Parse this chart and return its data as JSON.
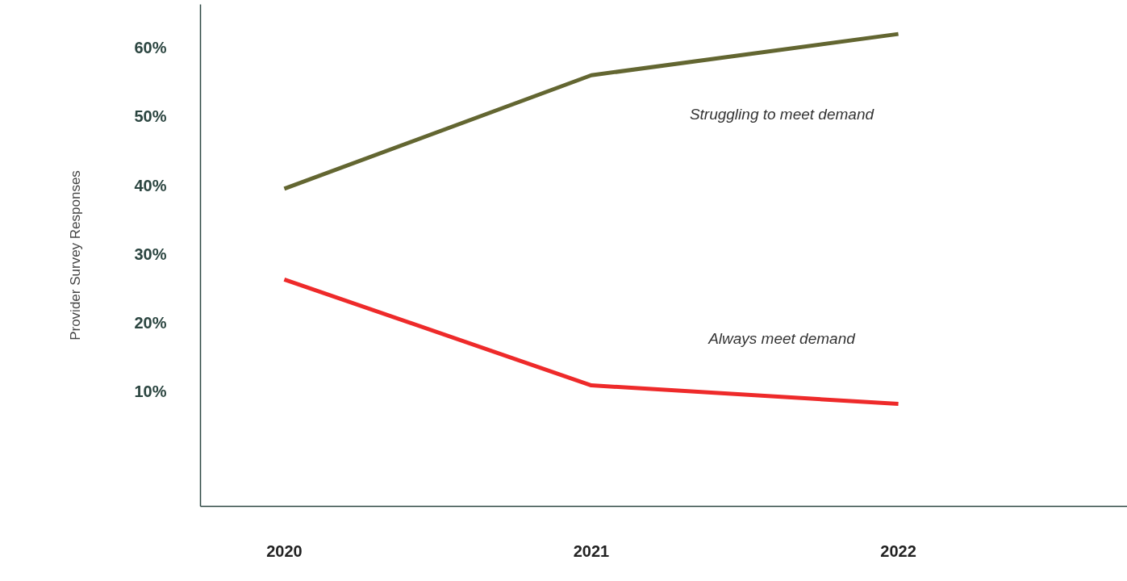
{
  "chart_data": {
    "type": "line",
    "ylabel": "Provider Survey Responses",
    "categories": [
      "2020",
      "2021",
      "2022"
    ],
    "ylim": [
      -6.7,
      66.3
    ],
    "yticks": [
      {
        "value": 10,
        "label": "10%"
      },
      {
        "value": 20,
        "label": "20%"
      },
      {
        "value": 30,
        "label": "30%"
      },
      {
        "value": 40,
        "label": "40%"
      },
      {
        "value": 50,
        "label": "50%"
      },
      {
        "value": 60,
        "label": "60%"
      }
    ],
    "grid": false,
    "marker": "none",
    "line_style": "solid",
    "series": [
      {
        "name": "Struggling to meet demand",
        "color": "#636631",
        "values": [
          39.5,
          56.0,
          62.0
        ]
      },
      {
        "name": "Always meet demand",
        "color": "#ee2a2a",
        "values": [
          26.3,
          10.9,
          8.2
        ]
      }
    ]
  }
}
